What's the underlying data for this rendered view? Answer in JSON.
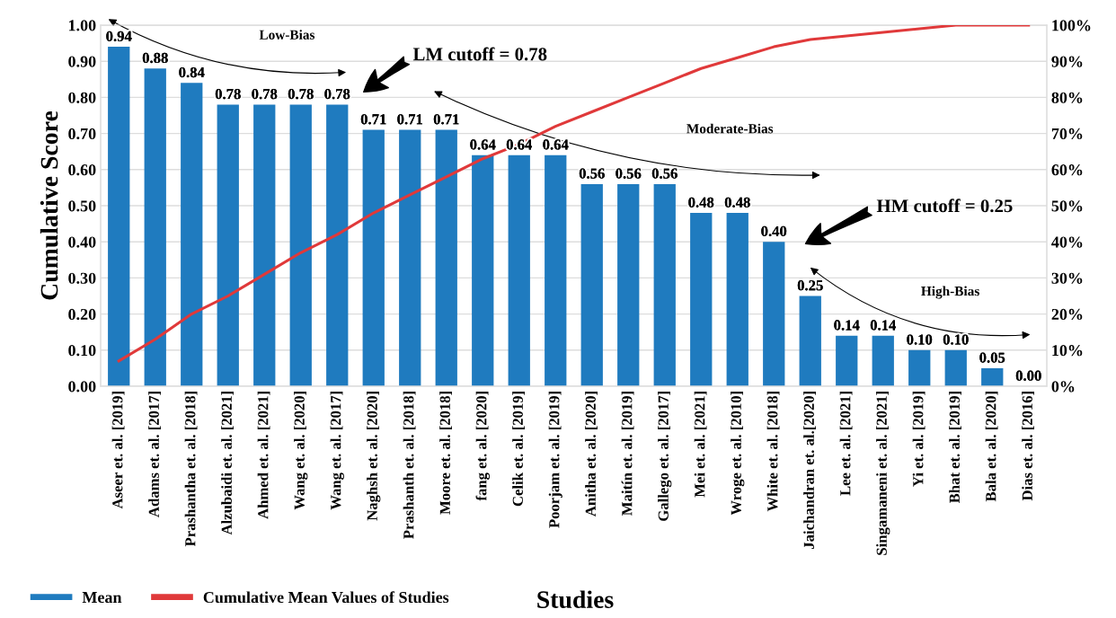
{
  "chart_data": {
    "type": "bar",
    "xlabel": "Studies",
    "ylabel": "Cumulative Score",
    "categories": [
      "Aseer et. al. [2019]",
      "Adams et. al. [2017]",
      "Prashantha et. al. [2018]",
      "Alzubaidi et. al. [2021]",
      "Ahmed et. al. [2021]",
      "Wang et. al. [2020]",
      "Wang et. al. [2017]",
      "Naghsh et. al. [2020]",
      "Prashanth et. al. [2018]",
      "Moore et. al. [2018]",
      "fang et. al. [2020]",
      "Celik et. al. [2019]",
      "Poorjam et. al. [2019]",
      "Anitha et. al. [2020]",
      "Maitín et. al. [2019]",
      "Gallego et. al. [2017]",
      "Mei et. al. [2021]",
      "Wroge et. al. [2010]",
      "White et. al. [2018]",
      "Jaichandran et. al.[2020]",
      "Lee et. al. [2021]",
      "Singamaneni et. al. [2021]",
      "Yi et. al. [2019]",
      "Bhat et. al. [2019]",
      "Bala et. al. [2020]",
      "Dias et. al. [2016]"
    ],
    "series": [
      {
        "name": "Mean",
        "color": "#1f7bbf",
        "value_labels": [
          "0.94",
          "0.88",
          "0.84",
          "0.78",
          "0.78",
          "0.78",
          "0.78",
          "0.71",
          "0.71",
          "0.71",
          "0.64",
          "0.64",
          "0.64",
          "0.56",
          "0.56",
          "0.56",
          "0.48",
          "0.48",
          "0.40",
          "0.25",
          "0.14",
          "0.14",
          "0.10",
          "0.10",
          "0.05",
          "0.00"
        ],
        "values": [
          0.94,
          0.88,
          0.84,
          0.78,
          0.78,
          0.78,
          0.78,
          0.71,
          0.71,
          0.71,
          0.64,
          0.64,
          0.64,
          0.56,
          0.56,
          0.56,
          0.48,
          0.48,
          0.4,
          0.25,
          0.14,
          0.14,
          0.1,
          0.1,
          0.05,
          0.0
        ]
      },
      {
        "name": "Cumulative Mean Values of Studies",
        "type": "line",
        "axis": "y2",
        "color": "#e0393a",
        "values": [
          7,
          13,
          20,
          25,
          31,
          37,
          42,
          48,
          53,
          58,
          63,
          67,
          72,
          76,
          80,
          84,
          88,
          91,
          94,
          96,
          97,
          98,
          99,
          100,
          100,
          100
        ]
      }
    ],
    "ylim": [
      0,
      1
    ],
    "yticks": [
      {
        "value": 0,
        "label": "0.00"
      },
      {
        "value": 0.1,
        "label": "0.10"
      },
      {
        "value": 0.2,
        "label": "0.20"
      },
      {
        "value": 0.3,
        "label": "0.30"
      },
      {
        "value": 0.4,
        "label": "0.40"
      },
      {
        "value": 0.5,
        "label": "0.50"
      },
      {
        "value": 0.6,
        "label": "0.60"
      },
      {
        "value": 0.7,
        "label": "0.70"
      },
      {
        "value": 0.8,
        "label": "0.80"
      },
      {
        "value": 0.9,
        "label": "0.90"
      },
      {
        "value": 1,
        "label": "1.00"
      }
    ],
    "y2lim": [
      0,
      100
    ],
    "y2ticks": [
      {
        "value": 0,
        "label": "0%"
      },
      {
        "value": 10,
        "label": "10%"
      },
      {
        "value": 20,
        "label": "20%"
      },
      {
        "value": 30,
        "label": "30%"
      },
      {
        "value": 40,
        "label": "40%"
      },
      {
        "value": 50,
        "label": "50%"
      },
      {
        "value": 60,
        "label": "60%"
      },
      {
        "value": 70,
        "label": "70%"
      },
      {
        "value": 80,
        "label": "80%"
      },
      {
        "value": 90,
        "label": "90%"
      },
      {
        "value": 100,
        "label": "100%"
      }
    ],
    "grid": "y",
    "legend": "bottom left",
    "annotations": [
      "LM cutoff = 0.78",
      "HM cutoff = 0.25",
      "Low-Bias",
      "Moderate-Bias",
      "High-Bias"
    ]
  }
}
